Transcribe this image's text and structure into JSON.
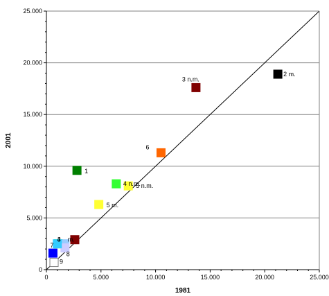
{
  "chart_data": {
    "type": "scatter",
    "title": "",
    "xlabel": "1981",
    "ylabel": "2001",
    "xlim": [
      0,
      25000
    ],
    "ylim": [
      0,
      25000
    ],
    "x_ticks": [
      "0",
      "5.000",
      "10.000",
      "15.000",
      "20.000",
      "25.000"
    ],
    "y_ticks": [
      "0",
      "5.000",
      "10.000",
      "15.000",
      "20.000",
      "25.000"
    ],
    "grid": "horizontal",
    "diagonal_reference_line": true,
    "points": [
      {
        "label": "2 m.",
        "x": 21200,
        "y": 18900,
        "color": "#000000",
        "fill": true
      },
      {
        "label": "3 n.m.",
        "x": 13700,
        "y": 17600,
        "color": "#800000",
        "fill": true
      },
      {
        "label": "6",
        "x": 10500,
        "y": 11300,
        "color": "#ff6600",
        "fill": true
      },
      {
        "label": "1",
        "x": 2800,
        "y": 9600,
        "color": "#008000",
        "fill": true
      },
      {
        "label": "4 n.m.",
        "x": 6400,
        "y": 8300,
        "color": "#33ff33",
        "fill": true
      },
      {
        "label": "5 n.m.",
        "x": 7500,
        "y": 8100,
        "color": "#ffff33",
        "fill": true
      },
      {
        "label": "5 m.",
        "x": 4800,
        "y": 6300,
        "color": "#ffff33",
        "fill": true
      },
      {
        "label": "",
        "x": 2600,
        "y": 2900,
        "color": "#800000",
        "fill": true
      },
      {
        "label": "4",
        "x": 1100,
        "y": 2500,
        "color": "#33ff33",
        "fill": true
      },
      {
        "label": "m.",
        "x": 1700,
        "y": 2500,
        "color": "#99ccff",
        "fill": true
      },
      {
        "label": "8",
        "x": 1700,
        "y": 2100,
        "color": "#ccccff",
        "fill": true
      },
      {
        "label": "7",
        "x": 600,
        "y": 1600,
        "color": "#0000ff",
        "fill": true
      },
      {
        "label": "3",
        "x": 1000,
        "y": 2500,
        "color": "#33ccff",
        "fill": true
      },
      {
        "label": "9",
        "x": 700,
        "y": 700,
        "color": "#ffffff",
        "fill": false
      }
    ]
  }
}
